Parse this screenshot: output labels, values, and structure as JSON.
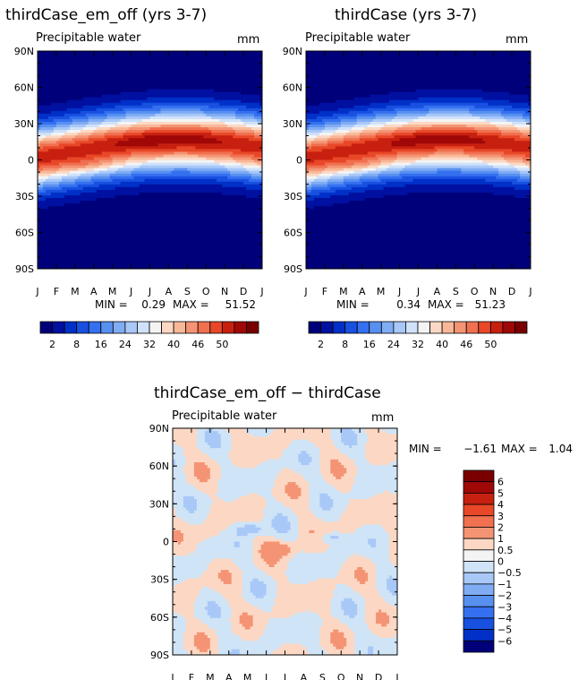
{
  "chart_data": [
    {
      "type": "heatmap",
      "title": "thirdCase_em_off (yrs 3-7)",
      "subtitle": "Precipitable water",
      "units": "mm",
      "stats": {
        "min_label": "MIN =",
        "min": "0.29",
        "max_label": "MAX =",
        "max": "51.52"
      },
      "x_ticks": [
        "J",
        "F",
        "M",
        "A",
        "M",
        "J",
        "J",
        "A",
        "S",
        "O",
        "N",
        "D",
        "J"
      ],
      "y_ticks": [
        "90N",
        "60N",
        "30N",
        "0",
        "30S",
        "60S",
        "90S"
      ],
      "colorbar_labels": [
        "2",
        "8",
        "16",
        "24",
        "32",
        "40",
        "46",
        "50"
      ],
      "max_value_approx": 51.52
    },
    {
      "type": "heatmap",
      "title": "thirdCase (yrs 3-7)",
      "subtitle": "Precipitable water",
      "units": "mm",
      "stats": {
        "min_label": "MIN =",
        "min": "0.34",
        "max_label": "MAX =",
        "max": "51.23"
      },
      "x_ticks": [
        "J",
        "F",
        "M",
        "A",
        "M",
        "J",
        "J",
        "A",
        "S",
        "O",
        "N",
        "D",
        "J"
      ],
      "y_ticks": [
        "90N",
        "60N",
        "30N",
        "0",
        "30S",
        "60S",
        "90S"
      ],
      "colorbar_labels": [
        "2",
        "8",
        "16",
        "24",
        "32",
        "40",
        "46",
        "50"
      ],
      "max_value_approx": 51.23
    },
    {
      "type": "heatmap",
      "title": "thirdCase_em_off − thirdCase",
      "subtitle": "Precipitable water",
      "units": "mm",
      "stats": {
        "min_label": "MIN =",
        "min": "−1.61",
        "max_label": "MAX =",
        "max": "1.04"
      },
      "x_ticks": [
        "J",
        "F",
        "M",
        "A",
        "M",
        "J",
        "J",
        "A",
        "S",
        "O",
        "N",
        "D",
        "J"
      ],
      "y_ticks": [
        "90N",
        "60N",
        "30N",
        "0",
        "30S",
        "60S",
        "90S"
      ],
      "colorbar_labels": [
        "6",
        "5",
        "4",
        "3",
        "2",
        "1",
        "0.5",
        "0",
        "−0.5",
        "−1",
        "−2",
        "−3",
        "−4",
        "−5",
        "−6"
      ]
    }
  ],
  "palettes": {
    "absolute": [
      "#00007a",
      "#0010a0",
      "#0030c8",
      "#1850e0",
      "#3470f0",
      "#5890f0",
      "#80acf4",
      "#a8c8f8",
      "#d0e2fa",
      "#f4f4f4",
      "#fcd8c4",
      "#f8b898",
      "#f49474",
      "#f07050",
      "#e84828",
      "#c82010",
      "#a00808",
      "#7a0000"
    ],
    "difference": [
      "#7a0000",
      "#a00808",
      "#c82010",
      "#e84828",
      "#f07050",
      "#f49474",
      "#fcd8c4",
      "#f4f4f4",
      "#cfe4f6",
      "#a8c8f8",
      "#80acf4",
      "#5890f0",
      "#3470f0",
      "#1850e0",
      "#0030c8",
      "#00007a"
    ]
  }
}
